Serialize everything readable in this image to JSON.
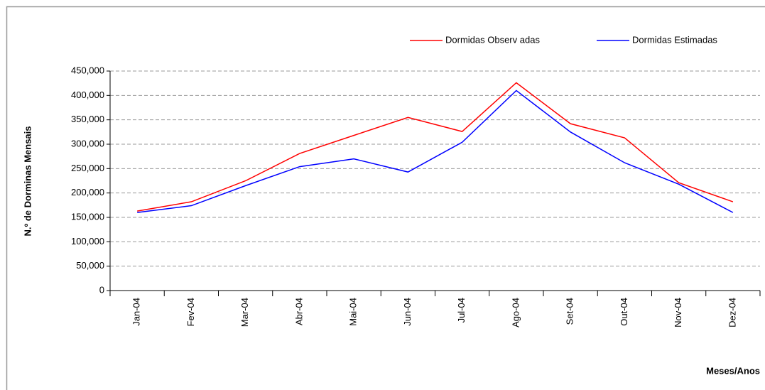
{
  "chart_data": {
    "type": "line",
    "y_label": "N.º de Dorminas Mensais",
    "x_label": "Meses/Anos",
    "categories": [
      "Jan-04",
      "Fev-04",
      "Mar-04",
      "Abr-04",
      "Mai-04",
      "Jun-04",
      "Jul-04",
      "Ago-04",
      "Set-04",
      "Out-04",
      "Nov-04",
      "Dez-04"
    ],
    "series": [
      {
        "name": "Dormidas Observ adas",
        "color": "#ff0000",
        "values": [
          163000,
          182000,
          225000,
          281000,
          318000,
          355000,
          326000,
          426000,
          342000,
          313000,
          221000,
          182000
        ]
      },
      {
        "name": "Dormidas Estimadas",
        "color": "#0000ff",
        "values": [
          160000,
          174000,
          215000,
          254000,
          270000,
          243000,
          304000,
          410000,
          325000,
          262000,
          218000,
          160000
        ]
      }
    ],
    "ylim": [
      0,
      450000
    ],
    "yticks": [
      0,
      {
        "value": 50000,
        "label": "50,000"
      },
      {
        "value": 100000,
        "label": "100,000"
      },
      {
        "value": 150000,
        "label": "150,000"
      },
      {
        "value": 200000,
        "label": "200,000"
      },
      {
        "value": 250000,
        "label": "250,000"
      },
      {
        "value": 300000,
        "label": "300,000"
      },
      {
        "value": 350000,
        "label": "350,000"
      },
      {
        "value": 400000,
        "label": "400,000"
      },
      {
        "value": 450000,
        "label": "450,000"
      }
    ],
    "grid": true,
    "legend": "top-right"
  }
}
